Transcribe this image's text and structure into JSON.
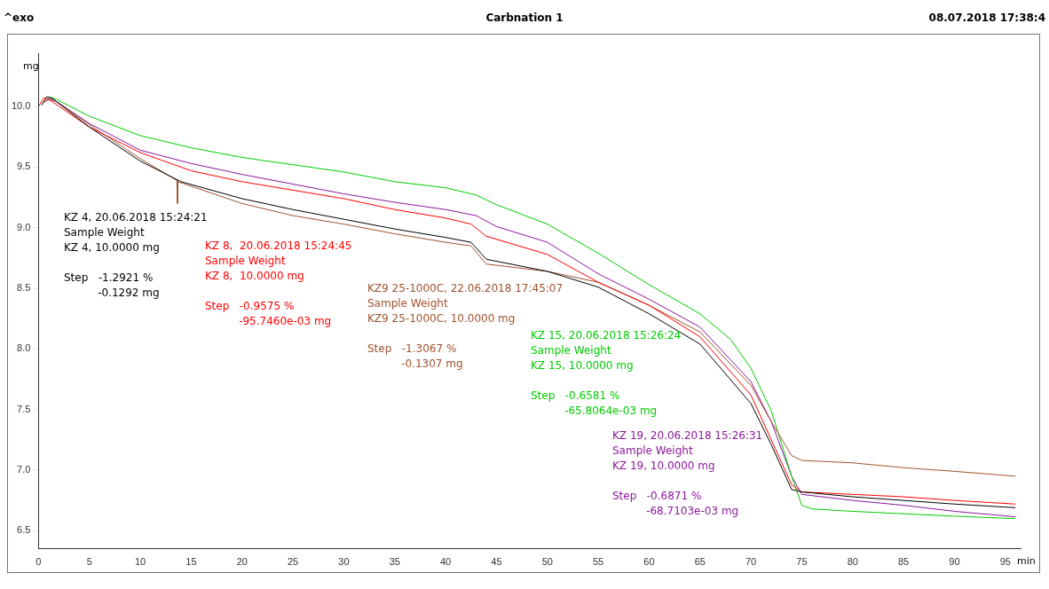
{
  "chart_data": {
    "type": "line",
    "title": "Carbnation 1",
    "subtitle": "08.07.2018 17:38:4",
    "xlabel": "min",
    "ylabel": "mg",
    "xlim": [
      0,
      96.5
    ],
    "ylim": [
      6.35,
      10.44
    ],
    "xticks": [
      0,
      5,
      10,
      15,
      20,
      25,
      30,
      35,
      40,
      45,
      50,
      55,
      60,
      65,
      70,
      75,
      80,
      85,
      90,
      95
    ],
    "yticks": [
      {
        "value": 6.5,
        "label": "6.5"
      },
      {
        "value": 7,
        "label": "7.0"
      },
      {
        "value": 7.5,
        "label": "7.5"
      },
      {
        "value": 8,
        "label": "8.0"
      },
      {
        "value": 8.5,
        "label": "8.5"
      },
      {
        "value": 9,
        "label": "9.0"
      },
      {
        "value": 9.5,
        "label": "9.5"
      },
      {
        "value": 10,
        "label": "10.0"
      }
    ],
    "grid": false,
    "legend": false,
    "series": [
      {
        "color": "#000000",
        "x": [
          0.3,
          0.8,
          1.3,
          5,
          10,
          14,
          20,
          25,
          30,
          35,
          40,
          42.5,
          44,
          50,
          55,
          60,
          65,
          70,
          72,
          74,
          75,
          80,
          85,
          90,
          96
        ],
        "values": [
          10.01,
          10.08,
          10.07,
          9.83,
          9.55,
          9.38,
          9.24,
          9.15,
          9.07,
          8.99,
          8.92,
          8.88,
          8.74,
          8.64,
          8.51,
          8.29,
          8.04,
          7.55,
          7.21,
          6.84,
          6.82,
          6.78,
          6.75,
          6.72,
          6.69
        ]
      },
      {
        "color": "#ff0000",
        "x": [
          0,
          0.5,
          1,
          5,
          10,
          15,
          20,
          25,
          30,
          35,
          40,
          42.5,
          44,
          50,
          55,
          60,
          65,
          70,
          72,
          74,
          75,
          80,
          85,
          90,
          96
        ],
        "values": [
          10,
          10.07,
          10.06,
          9.83,
          9.62,
          9.47,
          9.38,
          9.31,
          9.24,
          9.15,
          9.08,
          9.03,
          8.93,
          8.78,
          8.55,
          8.36,
          8.1,
          7.62,
          7.25,
          6.88,
          6.82,
          6.8,
          6.78,
          6.75,
          6.72
        ]
      },
      {
        "color": "#a0522d",
        "x": [
          0.4,
          1.2,
          1.6,
          5,
          10,
          13.6,
          13.65,
          13.7,
          20,
          25,
          30,
          35,
          40,
          42.5,
          44,
          50,
          55,
          60,
          65,
          70,
          72,
          74,
          75,
          80,
          85,
          90,
          96
        ],
        "values": [
          10.03,
          10.07,
          10.05,
          9.85,
          9.57,
          9.39,
          9.2,
          9.38,
          9.2,
          9.1,
          9.03,
          8.95,
          8.88,
          8.85,
          8.7,
          8.64,
          8.55,
          8.36,
          8.14,
          7.7,
          7.4,
          7.12,
          7.08,
          7.06,
          7.02,
          6.99,
          6.95
        ]
      },
      {
        "color": "#00cc00",
        "x": [
          0.9,
          1.5,
          5,
          10,
          15,
          20,
          25,
          30,
          35,
          40,
          43,
          45,
          50,
          55,
          60,
          65,
          68,
          70,
          72,
          74,
          75,
          76,
          80,
          85,
          90,
          96
        ],
        "values": [
          10.08,
          10.07,
          9.92,
          9.76,
          9.66,
          9.58,
          9.52,
          9.46,
          9.38,
          9.33,
          9.27,
          9.19,
          9.03,
          8.79,
          8.53,
          8.29,
          8.08,
          7.84,
          7.49,
          6.95,
          6.71,
          6.68,
          6.66,
          6.64,
          6.62,
          6.6
        ]
      },
      {
        "color": "#8b1a9b",
        "x": [
          0.6,
          1.1,
          1.8,
          5,
          10,
          15,
          20,
          25,
          30,
          35,
          40,
          43,
          45,
          50,
          55,
          60,
          65,
          70,
          72,
          74,
          75,
          80,
          85,
          90,
          96
        ],
        "values": [
          10.04,
          10.06,
          10.04,
          9.86,
          9.64,
          9.53,
          9.44,
          9.36,
          9.28,
          9.21,
          9.15,
          9.1,
          9.01,
          8.88,
          8.62,
          8.41,
          8.18,
          7.73,
          7.4,
          6.95,
          6.8,
          6.75,
          6.71,
          6.66,
          6.615
        ]
      }
    ],
    "annotations": [
      "^exo",
      "KZ 4, 20.06.2018 15:24:21\nSample Weight\nKZ 4, 10.0000 mg\n\nStep   -1.2921 %\n          -0.1292 mg",
      "KZ 8,  20.06.2018 15:24:45\nSample Weight\nKZ 8,  10.0000 mg\n\nStep   -0.9575 %\n          -95.7460e-03 mg",
      "KZ9 25-1000C, 22.06.2018 17:45:07\nSample Weight\nKZ9 25-1000C, 10.0000 mg\n\nStep   -1.3067 %\n          -0.1307 mg",
      "KZ 15, 20.06.2018 15:26:24\nSample Weight\nKZ 15, 10.0000 mg\n\nStep   -0.6581 %\n          -65.8064e-03 mg",
      "KZ 19, 20.06.2018 15:26:31\nSample Weight\nKZ 19, 10.0000 mg\n\nStep   -0.6871 %\n          -68.7103e-03 mg"
    ]
  }
}
